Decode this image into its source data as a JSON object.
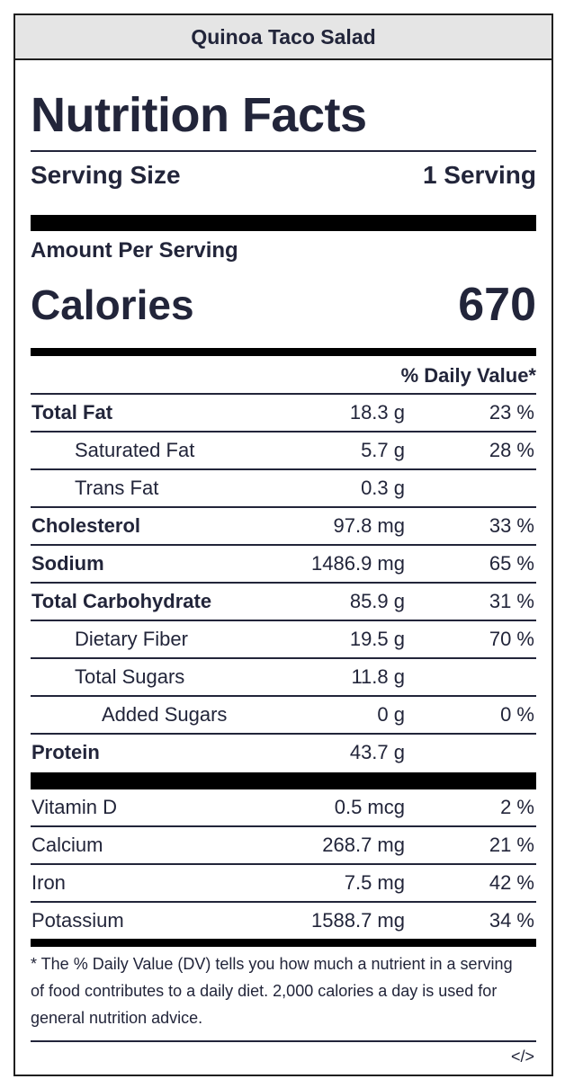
{
  "recipe_title": "Quinoa Taco Salad",
  "label": {
    "heading": "Nutrition Facts",
    "serving_size_label": "Serving Size",
    "serving_size_value": "1 Serving",
    "amount_per_serving": "Amount Per Serving",
    "calories_label": "Calories",
    "calories_value": "670",
    "daily_value_header": "% Daily Value*"
  },
  "nutrients": [
    {
      "name": "Total Fat",
      "amount": "18.3 g",
      "dv": "23 %"
    },
    {
      "name": "Saturated Fat",
      "amount": "5.7 g",
      "dv": "28 %"
    },
    {
      "name": "Trans Fat",
      "amount": "0.3 g",
      "dv": ""
    },
    {
      "name": "Cholesterol",
      "amount": "97.8 mg",
      "dv": "33 %"
    },
    {
      "name": "Sodium",
      "amount": "1486.9 mg",
      "dv": "65 %"
    },
    {
      "name": "Total Carbohydrate",
      "amount": "85.9 g",
      "dv": "31 %"
    },
    {
      "name": "Dietary Fiber",
      "amount": "19.5 g",
      "dv": "70 %"
    },
    {
      "name": "Total Sugars",
      "amount": "11.8 g",
      "dv": ""
    },
    {
      "name": "Added Sugars",
      "amount": "0 g",
      "dv": "0 %"
    },
    {
      "name": "Protein",
      "amount": "43.7 g",
      "dv": ""
    }
  ],
  "vitamins": [
    {
      "name": "Vitamin D",
      "amount": "0.5 mcg",
      "dv": "2 %"
    },
    {
      "name": "Calcium",
      "amount": "268.7 mg",
      "dv": "21 %"
    },
    {
      "name": "Iron",
      "amount": "7.5 mg",
      "dv": "42 %"
    },
    {
      "name": "Potassium",
      "amount": "1588.7 mg",
      "dv": "34 %"
    }
  ],
  "footnote": "* The % Daily Value (DV) tells you how much a nutrient in a serving of food contributes to a daily diet. 2,000 calories a day is used for general nutrition advice.",
  "embed_label": "</>"
}
